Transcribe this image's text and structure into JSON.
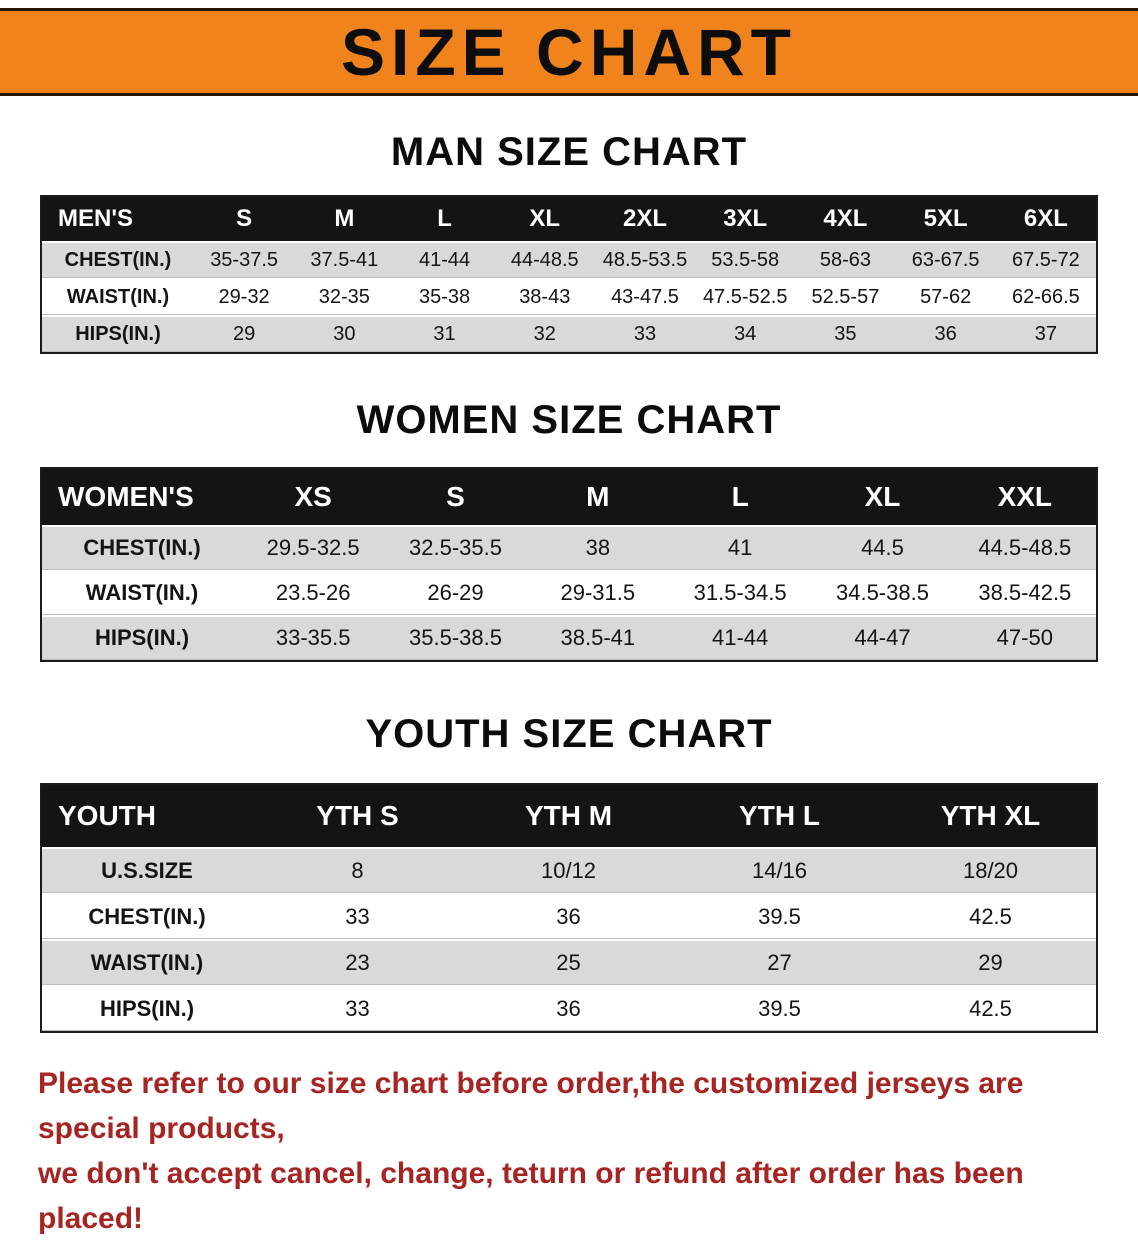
{
  "banner": {
    "title": "SIZE CHART"
  },
  "colors": {
    "banner_bg": "#f1831d",
    "table_header_bg": "#141414",
    "row_stripe": "#d9d9d9",
    "disclaimer_text": "#a62422"
  },
  "sections": [
    {
      "id": "men",
      "heading": "MAN SIZE CHART",
      "corner": "MEN'S",
      "columns": [
        "S",
        "M",
        "L",
        "XL",
        "2XL",
        "3XL",
        "4XL",
        "5XL",
        "6XL"
      ],
      "rows": [
        [
          "CHEST(IN.)",
          "35-37.5",
          "37.5-41",
          "41-44",
          "44-48.5",
          "48.5-53.5",
          "53.5-58",
          "58-63",
          "63-67.5",
          "67.5-72"
        ],
        [
          "WAIST(IN.)",
          "29-32",
          "32-35",
          "35-38",
          "38-43",
          "43-47.5",
          "47.5-52.5",
          "52.5-57",
          "57-62",
          "62-66.5"
        ],
        [
          "HIPS(IN.)",
          "29",
          "30",
          "31",
          "32",
          "33",
          "34",
          "35",
          "36",
          "37"
        ]
      ]
    },
    {
      "id": "women",
      "heading": "WOMEN SIZE CHART",
      "corner": "WOMEN'S",
      "columns": [
        "XS",
        "S",
        "M",
        "L",
        "XL",
        "XXL"
      ],
      "rows": [
        [
          "CHEST(IN.)",
          "29.5-32.5",
          "32.5-35.5",
          "38",
          "41",
          "44.5",
          "44.5-48.5"
        ],
        [
          "WAIST(IN.)",
          "23.5-26",
          "26-29",
          "29-31.5",
          "31.5-34.5",
          "34.5-38.5",
          "38.5-42.5"
        ],
        [
          "HIPS(IN.)",
          "33-35.5",
          "35.5-38.5",
          "38.5-41",
          "41-44",
          "44-47",
          "47-50"
        ]
      ]
    },
    {
      "id": "youth",
      "heading": "YOUTH SIZE CHART",
      "corner": "YOUTH",
      "columns": [
        "YTH S",
        "YTH M",
        "YTH L",
        "YTH XL"
      ],
      "rows": [
        [
          "U.S.SIZE",
          "8",
          "10/12",
          "14/16",
          "18/20"
        ],
        [
          "CHEST(IN.)",
          "33",
          "36",
          "39.5",
          "42.5"
        ],
        [
          "WAIST(IN.)",
          "23",
          "25",
          "27",
          "29"
        ],
        [
          "HIPS(IN.)",
          "33",
          "36",
          "39.5",
          "42.5"
        ]
      ]
    }
  ],
  "footer": {
    "lines": [
      "Please refer to our size chart before order,the customized jerseys are special products,",
      "we don't accept cancel, change, teturn or refund after order has been placed!"
    ]
  }
}
